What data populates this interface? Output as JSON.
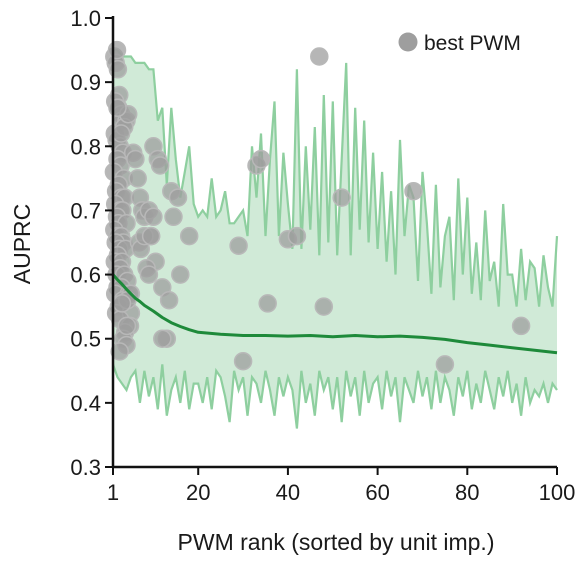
{
  "chart_data": {
    "type": "line",
    "xlabel": "PWM rank (sorted by unit imp.)",
    "ylabel": "AUPRC",
    "xlim": [
      1,
      100
    ],
    "ylim": [
      0.3,
      1.0
    ],
    "x_ticks": [
      1,
      20,
      40,
      60,
      80,
      100
    ],
    "y_ticks": [
      0.3,
      0.4,
      0.5,
      0.6,
      0.7,
      0.8,
      0.9,
      1.0
    ],
    "x_tick_labels": [
      "1",
      "20",
      "40",
      "60",
      "80",
      "100"
    ],
    "y_tick_labels": [
      "0.3",
      "0.4",
      "0.5",
      "0.6",
      "0.7",
      "0.8",
      "0.9",
      "1.0"
    ],
    "legend": {
      "label": "best PWM",
      "position": "top-right"
    },
    "colors": {
      "median_line": "#1e8a3a",
      "band_fill": "#cbe8d3",
      "band_edge": "#8ecf9f",
      "scatter": "#9e9e9e"
    },
    "median": {
      "x": [
        1,
        2,
        3,
        4,
        5,
        6,
        7,
        8,
        10,
        12,
        14,
        16,
        18,
        20,
        25,
        30,
        35,
        40,
        45,
        50,
        55,
        60,
        65,
        70,
        75,
        80,
        85,
        90,
        95,
        100
      ],
      "y": [
        0.6,
        0.592,
        0.585,
        0.577,
        0.57,
        0.563,
        0.558,
        0.552,
        0.543,
        0.533,
        0.525,
        0.519,
        0.514,
        0.51,
        0.507,
        0.505,
        0.505,
        0.504,
        0.505,
        0.503,
        0.505,
        0.503,
        0.504,
        0.502,
        0.499,
        0.494,
        0.49,
        0.486,
        0.482,
        0.478
      ]
    },
    "band": {
      "x": [
        1,
        2,
        3,
        4,
        5,
        6,
        7,
        8,
        9,
        10,
        11,
        12,
        13,
        14,
        15,
        16,
        17,
        18,
        19,
        20,
        21,
        22,
        23,
        24,
        25,
        26,
        27,
        28,
        29,
        30,
        31,
        32,
        33,
        34,
        35,
        36,
        37,
        38,
        39,
        40,
        41,
        42,
        43,
        44,
        45,
        46,
        47,
        48,
        49,
        50,
        51,
        52,
        53,
        54,
        55,
        56,
        57,
        58,
        59,
        60,
        61,
        62,
        63,
        64,
        65,
        66,
        67,
        68,
        69,
        70,
        71,
        72,
        73,
        74,
        75,
        76,
        77,
        78,
        79,
        80,
        81,
        82,
        83,
        84,
        85,
        86,
        87,
        88,
        89,
        90,
        91,
        92,
        93,
        94,
        95,
        96,
        97,
        98,
        99,
        100
      ],
      "upper": [
        0.95,
        0.95,
        0.94,
        0.94,
        0.94,
        0.93,
        0.93,
        0.93,
        0.92,
        0.92,
        0.84,
        0.86,
        0.74,
        0.86,
        0.78,
        0.72,
        0.76,
        0.8,
        0.71,
        0.69,
        0.7,
        0.69,
        0.75,
        0.69,
        0.7,
        0.73,
        0.68,
        0.68,
        0.69,
        0.7,
        0.66,
        0.8,
        0.72,
        0.82,
        0.66,
        0.78,
        0.87,
        0.66,
        0.79,
        0.71,
        0.64,
        0.92,
        0.64,
        0.8,
        0.67,
        0.83,
        0.63,
        0.88,
        0.65,
        0.87,
        0.63,
        0.78,
        0.93,
        0.63,
        0.86,
        0.67,
        0.84,
        0.65,
        0.79,
        0.64,
        0.76,
        0.62,
        0.73,
        0.6,
        0.81,
        0.66,
        0.74,
        0.72,
        0.59,
        0.76,
        0.68,
        0.57,
        0.74,
        0.58,
        0.66,
        0.69,
        0.56,
        0.75,
        0.6,
        0.72,
        0.57,
        0.65,
        0.56,
        0.7,
        0.59,
        0.62,
        0.55,
        0.71,
        0.6,
        0.6,
        0.55,
        0.64,
        0.56,
        0.62,
        0.61,
        0.55,
        0.63,
        0.58,
        0.55,
        0.66
      ],
      "lower": [
        0.46,
        0.44,
        0.43,
        0.42,
        0.44,
        0.45,
        0.4,
        0.45,
        0.41,
        0.44,
        0.39,
        0.46,
        0.38,
        0.42,
        0.44,
        0.4,
        0.45,
        0.39,
        0.43,
        0.43,
        0.4,
        0.44,
        0.39,
        0.45,
        0.44,
        0.41,
        0.37,
        0.45,
        0.42,
        0.44,
        0.38,
        0.44,
        0.43,
        0.4,
        0.45,
        0.42,
        0.38,
        0.44,
        0.41,
        0.44,
        0.42,
        0.36,
        0.45,
        0.4,
        0.43,
        0.38,
        0.45,
        0.42,
        0.44,
        0.39,
        0.44,
        0.37,
        0.45,
        0.41,
        0.44,
        0.38,
        0.45,
        0.4,
        0.43,
        0.44,
        0.39,
        0.45,
        0.41,
        0.44,
        0.37,
        0.44,
        0.42,
        0.4,
        0.45,
        0.41,
        0.44,
        0.39,
        0.45,
        0.4,
        0.44,
        0.42,
        0.38,
        0.44,
        0.41,
        0.45,
        0.39,
        0.43,
        0.4,
        0.45,
        0.42,
        0.39,
        0.44,
        0.41,
        0.45,
        0.4,
        0.43,
        0.38,
        0.44,
        0.4,
        0.42,
        0.41,
        0.43,
        0.4,
        0.43,
        0.42
      ]
    },
    "best_pwm_points": {
      "x": [
        1.3,
        1.6,
        1.9,
        2.1,
        2.4,
        1.5,
        2.2,
        2.8,
        3.0,
        1.4,
        1.8,
        2.5,
        3.2,
        2.0,
        2.7,
        1.2,
        3.4,
        2.3,
        1.7,
        2.9,
        3.6,
        1.5,
        2.6,
        3.1,
        1.9,
        2.2,
        4.0,
        1.3,
        2.0,
        2.8,
        3.3,
        1.6,
        2.4,
        3.8,
        2.1,
        1.4,
        3.0,
        2.6,
        1.8,
        3.5,
        4.2,
        2.0,
        2.9,
        1.5,
        4.5,
        3.2,
        2.3,
        1.7,
        5.0,
        2.6,
        4.8,
        3.7,
        5.5,
        6.0,
        6.5,
        7.0,
        7.5,
        8.0,
        9.0,
        10.0,
        9.5,
        10.5,
        8.5,
        6.8,
        7.2,
        9.0,
        3.3,
        4.0,
        4.1,
        2.5,
        10.0,
        11.0,
        11.5,
        14.0,
        14.5,
        15.5,
        16.0,
        18.0,
        13.0,
        12.0,
        4.0,
        3.5,
        2.8,
        4.4,
        2.0,
        33.0,
        34.0,
        30.0,
        35.5,
        40.0,
        42.0,
        29.0,
        47.0,
        52.0,
        68.0,
        48.0,
        75.0,
        92.0,
        5.0,
        4.2,
        3.0,
        12.0,
        13.5,
        8.0,
        9.5
      ],
      "y": [
        0.94,
        0.93,
        0.95,
        0.92,
        0.88,
        0.87,
        0.86,
        0.85,
        0.84,
        0.82,
        0.81,
        0.8,
        0.79,
        0.78,
        0.77,
        0.76,
        0.75,
        0.74,
        0.73,
        0.72,
        0.72,
        0.71,
        0.7,
        0.7,
        0.69,
        0.68,
        0.68,
        0.67,
        0.66,
        0.66,
        0.65,
        0.65,
        0.64,
        0.64,
        0.63,
        0.62,
        0.62,
        0.61,
        0.6,
        0.6,
        0.59,
        0.58,
        0.58,
        0.57,
        0.57,
        0.56,
        0.55,
        0.54,
        0.54,
        0.53,
        0.52,
        0.51,
        0.79,
        0.78,
        0.75,
        0.72,
        0.7,
        0.69,
        0.7,
        0.69,
        0.66,
        0.62,
        0.61,
        0.65,
        0.64,
        0.6,
        0.5,
        0.49,
        0.52,
        0.48,
        0.8,
        0.78,
        0.77,
        0.73,
        0.69,
        0.72,
        0.6,
        0.66,
        0.5,
        0.5,
        0.84,
        0.83,
        0.82,
        0.85,
        0.86,
        0.77,
        0.78,
        0.465,
        0.555,
        0.655,
        0.66,
        0.645,
        0.94,
        0.72,
        0.73,
        0.55,
        0.46,
        0.52,
        0.57,
        0.56,
        0.555,
        0.58,
        0.56,
        0.66,
        0.66
      ]
    }
  }
}
